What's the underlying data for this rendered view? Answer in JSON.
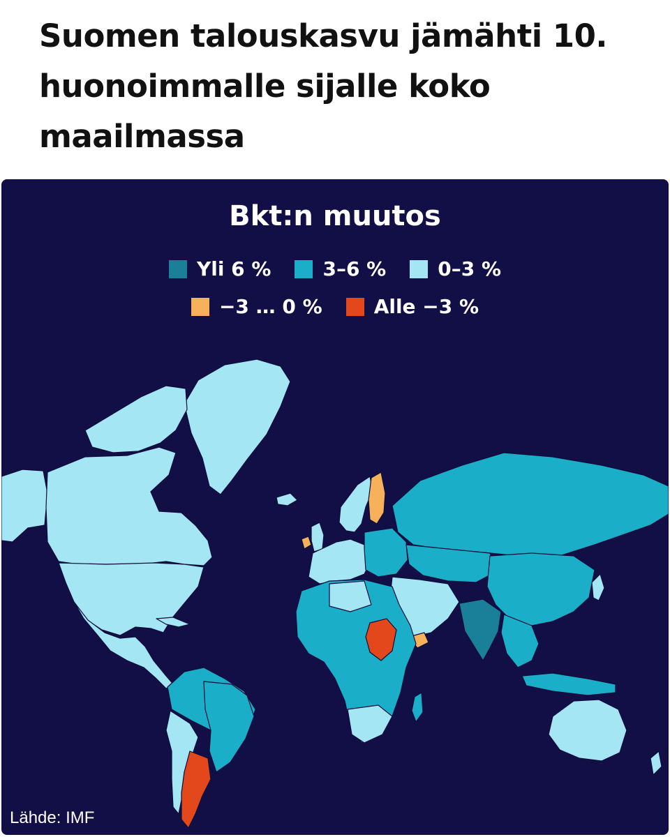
{
  "headline": "Suomen talouskasvu jämähti 10. huonoimmalle sijalle koko maailmassa",
  "map": {
    "title": "Bkt:n muutos",
    "source": "Lähde: IMF",
    "colors": {
      "ocean": "#120f47",
      "border": "#0e0c3a"
    },
    "legend": [
      {
        "label": "Yli 6 %",
        "color": "#1a7f98"
      },
      {
        "label": "3–6 %",
        "color": "#1aaec8"
      },
      {
        "label": "0–3 %",
        "color": "#a4e6f4"
      },
      {
        "label": "−3 … 0 %",
        "color": "#f7b15a"
      },
      {
        "label": "Alle −3 %",
        "color": "#e2481c"
      }
    ]
  }
}
